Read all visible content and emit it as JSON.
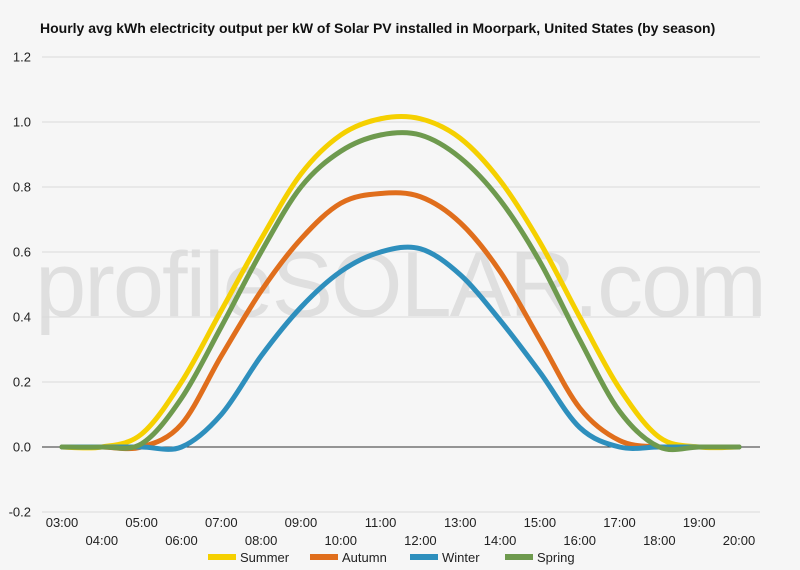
{
  "chart_data": {
    "type": "line",
    "title": "Hourly avg kWh electricity output per kW of Solar PV installed in Moorpark, United States (by season)",
    "watermark": "profileSOLAR.com",
    "x": [
      "03:00",
      "04:00",
      "05:00",
      "06:00",
      "07:00",
      "08:00",
      "09:00",
      "10:00",
      "11:00",
      "12:00",
      "13:00",
      "14:00",
      "15:00",
      "16:00",
      "17:00",
      "18:00",
      "19:00",
      "20:00"
    ],
    "ylim": [
      -0.2,
      1.2
    ],
    "yticks": [
      "-0.2",
      "0.0",
      "0.2",
      "0.4",
      "0.6",
      "0.8",
      "1.0",
      "1.2"
    ],
    "grid": true,
    "legend_position": "bottom",
    "series": [
      {
        "name": "Summer",
        "color": "#f5d000",
        "values": [
          0.0,
          0.0,
          0.04,
          0.2,
          0.42,
          0.64,
          0.84,
          0.96,
          1.01,
          1.01,
          0.95,
          0.82,
          0.63,
          0.4,
          0.18,
          0.03,
          0.0,
          0.0
        ]
      },
      {
        "name": "Autumn",
        "color": "#e06e1c",
        "values": [
          0.0,
          0.0,
          0.0,
          0.07,
          0.28,
          0.48,
          0.64,
          0.75,
          0.78,
          0.77,
          0.69,
          0.54,
          0.33,
          0.12,
          0.02,
          0.0,
          0.0,
          0.0
        ]
      },
      {
        "name": "Winter",
        "color": "#2e8fbd",
        "values": [
          0.0,
          0.0,
          0.0,
          0.0,
          0.1,
          0.28,
          0.43,
          0.54,
          0.6,
          0.61,
          0.53,
          0.39,
          0.23,
          0.06,
          0.0,
          0.0,
          0.0,
          0.0
        ]
      },
      {
        "name": "Spring",
        "color": "#6e9a4e",
        "values": [
          0.0,
          0.0,
          0.01,
          0.15,
          0.37,
          0.6,
          0.8,
          0.91,
          0.96,
          0.96,
          0.89,
          0.76,
          0.57,
          0.33,
          0.11,
          0.0,
          0.0,
          0.0
        ]
      }
    ]
  }
}
